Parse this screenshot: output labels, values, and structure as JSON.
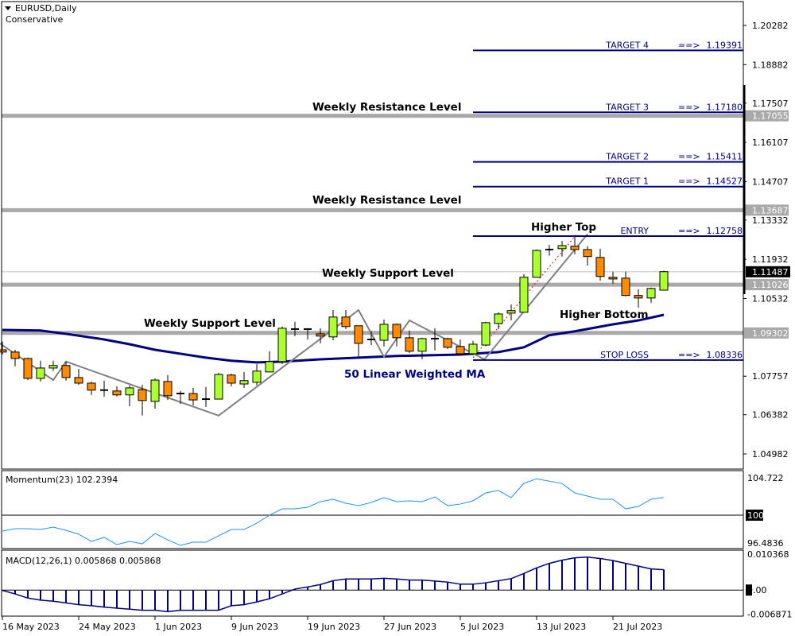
{
  "header": {
    "symbol": "EURUSD,Daily",
    "template": "Conservative"
  },
  "colors": {
    "bull": "#adff2f",
    "bear": "#ff8c00",
    "ma": "#000080",
    "level": "#a9a9a9",
    "zigzag": "#808080",
    "momentum": "#1e90ff",
    "macd": "#000080",
    "target": "#000080",
    "entry_dash": "#ff0000"
  },
  "chart_data": [
    {
      "type": "candlestick",
      "title": "EURUSD,Daily",
      "ylim": [
        1.04982,
        1.20282
      ],
      "y_ticks": [
        "1.20282",
        "1.18882",
        "1.17507",
        "1.16107",
        "1.14707",
        "1.13332",
        "1.11932",
        "1.10532",
        "1.07757",
        "1.06382",
        "1.04982"
      ],
      "x_tick_labels": [
        {
          "bar": 0,
          "label": "16 May 2023"
        },
        {
          "bar": 6,
          "label": "24 May 2023"
        },
        {
          "bar": 12,
          "label": "1 Jun 2023"
        },
        {
          "bar": 18,
          "label": "9 Jun 2023"
        },
        {
          "bar": 24,
          "label": "19 Jun 2023"
        },
        {
          "bar": 30,
          "label": "27 Jun 2023"
        },
        {
          "bar": 36,
          "label": "5 Jul 2023"
        },
        {
          "bar": 42,
          "label": "13 Jul 2023"
        },
        {
          "bar": 48,
          "label": "21 Jul 2023"
        }
      ],
      "ohlc": [
        [
          1.087,
          1.0899,
          1.0853,
          1.0862
        ],
        [
          1.0862,
          1.087,
          1.0811,
          1.0839
        ],
        [
          1.0839,
          1.0842,
          1.0762,
          1.0768
        ],
        [
          1.0768,
          1.0831,
          1.0757,
          1.0805
        ],
        [
          1.0805,
          1.0831,
          1.0794,
          1.0814
        ],
        [
          1.0814,
          1.0828,
          1.076,
          1.0771
        ],
        [
          1.0771,
          1.0802,
          1.0745,
          1.0751
        ],
        [
          1.0751,
          1.0757,
          1.0709,
          1.0726
        ],
        [
          1.0726,
          1.076,
          1.0703,
          1.0726
        ],
        [
          1.0723,
          1.074,
          1.0703,
          1.0709
        ],
        [
          1.0709,
          1.0743,
          1.0669,
          1.0734
        ],
        [
          1.0728,
          1.0745,
          1.0635,
          1.0689
        ],
        [
          1.0686,
          1.0768,
          1.066,
          1.0762
        ],
        [
          1.0757,
          1.078,
          1.0691,
          1.0706
        ],
        [
          1.0709,
          1.0723,
          1.0677,
          1.0714
        ],
        [
          1.0714,
          1.0734,
          1.0672,
          1.0691
        ],
        [
          1.0694,
          1.0737,
          1.0666,
          1.0694
        ],
        [
          1.0694,
          1.0788,
          1.0694,
          1.0782
        ],
        [
          1.078,
          1.0785,
          1.074,
          1.0751
        ],
        [
          1.0748,
          1.0791,
          1.0734,
          1.076
        ],
        [
          1.0754,
          1.0819,
          1.0743,
          1.0794
        ],
        [
          1.0791,
          1.0865,
          1.0791,
          1.0828
        ],
        [
          1.0828,
          1.0953,
          1.0819,
          1.0947
        ],
        [
          1.0944,
          1.097,
          1.0919,
          1.0944
        ],
        [
          1.0944,
          1.0947,
          1.0907,
          1.0942
        ],
        [
          1.0927,
          1.0947,
          1.0893,
          1.0919
        ],
        [
          1.0916,
          1.1012,
          1.0904,
          1.0987
        ],
        [
          1.0987,
          1.1012,
          1.0944,
          1.0953
        ],
        [
          1.0956,
          1.0956,
          1.0845,
          1.0893
        ],
        [
          1.0907,
          1.0936,
          1.0887,
          1.0907
        ],
        [
          1.0904,
          1.0978,
          1.0882,
          1.0961
        ],
        [
          1.0961,
          1.0964,
          1.0882,
          1.0913
        ],
        [
          1.0913,
          1.0939,
          1.0859,
          1.0865
        ],
        [
          1.0865,
          1.0913,
          1.0836,
          1.091
        ],
        [
          1.091,
          1.0947,
          1.0868,
          1.091
        ],
        [
          1.091,
          1.0913,
          1.0873,
          1.0879
        ],
        [
          1.0882,
          1.0907,
          1.0856,
          1.0856
        ],
        [
          1.0856,
          1.0902,
          1.0851,
          1.089
        ],
        [
          1.0887,
          1.097,
          1.0882,
          1.0967
        ],
        [
          1.0964,
          1.1004,
          1.0944,
          1.0998
        ],
        [
          1.1001,
          1.1032,
          1.0975,
          1.101
        ],
        [
          1.1004,
          1.114,
          1.1004,
          1.1129
        ],
        [
          1.1129,
          1.1228,
          1.1129,
          1.1225
        ],
        [
          1.1223,
          1.1245,
          1.1206,
          1.1228
        ],
        [
          1.1231,
          1.1259,
          1.1203,
          1.1242
        ],
        [
          1.124,
          1.1274,
          1.1211,
          1.1228
        ],
        [
          1.1228,
          1.124,
          1.1171,
          1.1203
        ],
        [
          1.12,
          1.1231,
          1.1117,
          1.1132
        ],
        [
          1.1129,
          1.1149,
          1.1106,
          1.1123
        ],
        [
          1.1126,
          1.1149,
          1.1061,
          1.1064
        ],
        [
          1.1064,
          1.1086,
          1.1021,
          1.1055
        ],
        [
          1.1055,
          1.1092,
          1.1038,
          1.1089
        ],
        [
          1.1083,
          1.1152,
          1.1081,
          1.1149
        ]
      ],
      "moving_average": {
        "label": "50 Linear Weighted MA",
        "points": [
          [
            0,
            1.0941
          ],
          [
            3,
            1.0939
          ],
          [
            5,
            1.0927
          ],
          [
            8,
            1.0907
          ],
          [
            10,
            1.089
          ],
          [
            12,
            1.087
          ],
          [
            14,
            1.0856
          ],
          [
            16,
            1.0842
          ],
          [
            18,
            1.0831
          ],
          [
            20,
            1.0825
          ],
          [
            22,
            1.0828
          ],
          [
            25,
            1.0836
          ],
          [
            31,
            1.0848
          ],
          [
            36,
            1.0853
          ],
          [
            39,
            1.0862
          ],
          [
            41,
            1.0879
          ],
          [
            43,
            1.0922
          ],
          [
            45,
            1.0936
          ],
          [
            48,
            1.0961
          ],
          [
            50,
            1.0975
          ],
          [
            52,
            1.0995
          ]
        ]
      },
      "zigzag": [
        [
          -0.2,
          1.0893
        ],
        [
          4,
          1.0762
        ],
        [
          5,
          1.0828
        ],
        [
          17,
          1.0635
        ],
        [
          28,
          1.1012
        ],
        [
          30,
          1.0845
        ],
        [
          32,
          1.0975
        ],
        [
          37.9,
          1.0836
        ],
        [
          46,
          1.1283
        ]
      ],
      "entry_dash": [
        [
          37,
          1.0842
        ],
        [
          45.1,
          1.128
        ]
      ],
      "current_price": {
        "value": 1.11487,
        "label": "1.11487"
      },
      "levels": [
        {
          "value": 1.17055,
          "label": "1.17055",
          "text": "Weekly Resistance Level"
        },
        {
          "value": 1.13687,
          "label": "1.13687",
          "text": "Weekly Resistance Level"
        },
        {
          "value": 1.11026,
          "label": "1.11026",
          "text": "Weekly Support Level"
        },
        {
          "value": 1.09302,
          "label": "1.09302",
          "text": "Weekly Support Level"
        }
      ],
      "targets": [
        {
          "name": "TARGET 4",
          "arrow": "==>",
          "value": 1.19391,
          "label": "1.19391"
        },
        {
          "name": "TARGET 3",
          "arrow": "==>",
          "value": 1.1718,
          "label": "1.17180"
        },
        {
          "name": "TARGET 2",
          "arrow": "==>",
          "value": 1.15411,
          "label": "1.15411"
        },
        {
          "name": "TARGET 1",
          "arrow": "==>",
          "value": 1.14527,
          "label": "1.14527"
        },
        {
          "name": "ENTRY",
          "arrow": "==>",
          "value": 1.12758,
          "label": "1.12758"
        },
        {
          "name": "STOP LOSS",
          "arrow": "==>",
          "value": 1.08336,
          "label": "1.08336"
        }
      ],
      "annotations": {
        "higher_top": "Higher Top",
        "higher_bottom": "Higher Bottom"
      }
    },
    {
      "type": "line",
      "title": "Momentum(23) 102.2394",
      "ylim": [
        96.4836,
        104.722
      ],
      "y_ticks": [
        "104.722",
        "100",
        "96.4836"
      ],
      "reference": 100,
      "values": [
        97.99,
        98.29,
        98.29,
        98.19,
        98.49,
        98.09,
        97.59,
        96.68,
        97.19,
        96.28,
        96.68,
        96.38,
        97.69,
        96.88,
        96.18,
        96.58,
        96.58,
        97.39,
        98.19,
        98.19,
        98.99,
        100.0,
        100.8,
        100.8,
        101.0,
        101.71,
        102.01,
        101.51,
        101.2,
        101.61,
        102.21,
        101.71,
        101.81,
        101.71,
        102.31,
        101.2,
        101.4,
        101.81,
        102.81,
        103.11,
        102.21,
        104.02,
        104.6,
        104.3,
        104.0,
        102.81,
        102.41,
        102.01,
        102.01,
        100.8,
        101.1,
        102.01,
        102.2394
      ]
    },
    {
      "type": "bar",
      "title": "MACD(12,26,1) 0.005868 0.005868",
      "ylim": [
        -0.0075,
        0.0115
      ],
      "y_ticks": [
        "0.010368",
        "0.00",
        "-0.006871"
      ],
      "tick_values": [
        0.010368,
        0,
        -0.006871
      ],
      "values": [
        -0.0001,
        -0.0011,
        -0.0023,
        -0.0029,
        -0.0032,
        -0.0037,
        -0.0042,
        -0.0045,
        -0.0049,
        -0.0052,
        -0.0055,
        -0.0058,
        -0.0058,
        -0.0062,
        -0.0058,
        -0.0058,
        -0.0058,
        -0.0058,
        -0.0045,
        -0.0042,
        -0.0034,
        -0.0025,
        -0.0011,
        0.0003,
        0.0009,
        0.0016,
        0.0027,
        0.0032,
        0.0032,
        0.0032,
        0.0034,
        0.0032,
        0.0029,
        0.0029,
        0.0026,
        0.0023,
        0.0017,
        0.0017,
        0.0021,
        0.0027,
        0.0033,
        0.0048,
        0.0064,
        0.0077,
        0.0086,
        0.0093,
        0.0095,
        0.0091,
        0.0085,
        0.0077,
        0.0069,
        0.0061,
        0.005868
      ]
    }
  ]
}
